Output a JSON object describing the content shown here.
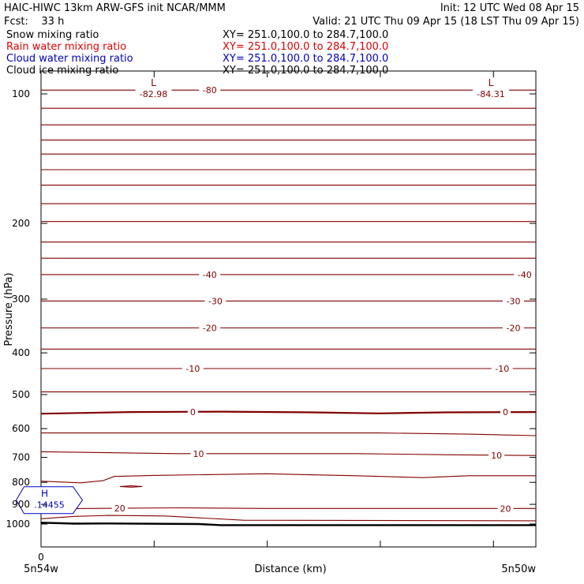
{
  "header": {
    "line1_left": "HAIC-HIWC 13km ARW-GFS init   NCAR/MMM",
    "line1_right": "Init: 12 UTC Wed 08 Apr 15",
    "line2_left": "Fcst:    33 h",
    "line2_right": "Valid: 21 UTC Thu 09 Apr 15 (18 LST Thu 09 Apr 15)"
  },
  "fields": [
    {
      "name": "Snow mixing ratio",
      "xy": "XY= 251.0,100.0 to 284.7,100.0",
      "color": "#000000"
    },
    {
      "name": "Rain water mixing ratio",
      "xy": "XY= 251.0,100.0 to 284.7,100.0",
      "color": "#e00000"
    },
    {
      "name": "Cloud water mixing ratio",
      "xy": "XY= 251.0,100.0 to 284.7,100.0",
      "color": "#0000c0"
    },
    {
      "name": "Cloud ice mixing ratio",
      "xy": "XY= 251.0,100.0 to 284.7,100.0",
      "color": "#000000"
    }
  ],
  "chart_data": {
    "type": "line",
    "ylabel": "Pressure (hPa)",
    "xlabel": "Distance (km)",
    "y_scale": "log",
    "ylim": [
      1050,
      85
    ],
    "xlim": [
      0,
      440
    ],
    "y_ticks": [
      "100",
      "200",
      "300",
      "400",
      "500",
      "600",
      "700",
      "800",
      "900",
      "1000"
    ],
    "x_tick_label": "0",
    "x_left_label": "5n54w",
    "x_right_label": "5n50w",
    "isotherm_color": "#800000",
    "ground_color": "#000000",
    "min_labels": [
      {
        "symbol": "L",
        "value": "-82.98",
        "x_km": 100
      },
      {
        "symbol": "L",
        "value": "-84.31",
        "x_km": 400
      }
    ],
    "max_label": {
      "symbol": "H",
      "value": ".14455",
      "x_km": 20,
      "p": 880,
      "color": "#0000c0"
    },
    "contours": [
      {
        "label": "-80",
        "label_x": [
          150
        ],
        "points": [
          [
            0,
            98
          ],
          [
            440,
            98
          ]
        ]
      },
      {
        "label": "",
        "points": [
          [
            0,
            108
          ],
          [
            440,
            108
          ]
        ]
      },
      {
        "label": "",
        "points": [
          [
            0,
            118
          ],
          [
            440,
            118
          ]
        ]
      },
      {
        "label": "",
        "points": [
          [
            0,
            128
          ],
          [
            440,
            128
          ]
        ]
      },
      {
        "label": "",
        "points": [
          [
            0,
            138
          ],
          [
            440,
            138
          ]
        ]
      },
      {
        "label": "",
        "points": [
          [
            0,
            150
          ],
          [
            440,
            150
          ]
        ]
      },
      {
        "label": "",
        "points": [
          [
            0,
            163
          ],
          [
            440,
            163
          ]
        ]
      },
      {
        "label": "",
        "points": [
          [
            0,
            180
          ],
          [
            440,
            180
          ]
        ]
      },
      {
        "label": "",
        "points": [
          [
            0,
            198
          ],
          [
            440,
            198
          ]
        ]
      },
      {
        "label": "",
        "points": [
          [
            0,
            221
          ],
          [
            440,
            221
          ]
        ]
      },
      {
        "label": "",
        "points": [
          [
            0,
            241
          ],
          [
            440,
            241
          ]
        ]
      },
      {
        "label": "-40",
        "label_x": [
          150,
          430
        ],
        "points": [
          [
            0,
            263
          ],
          [
            440,
            263
          ]
        ]
      },
      {
        "label": "-30",
        "label_x": [
          155,
          420
        ],
        "points": [
          [
            0,
            303
          ],
          [
            440,
            303
          ]
        ]
      },
      {
        "label": "-20",
        "label_x": [
          150,
          420
        ],
        "points": [
          [
            0,
            350
          ],
          [
            440,
            350
          ]
        ]
      },
      {
        "label": "",
        "points": [
          [
            0,
            392
          ],
          [
            440,
            392
          ]
        ]
      },
      {
        "label": "-10",
        "label_x": [
          135,
          410
        ],
        "points": [
          [
            0,
            435
          ],
          [
            440,
            435
          ]
        ]
      },
      {
        "label": "",
        "points": [
          [
            0,
            493
          ],
          [
            440,
            493
          ]
        ]
      },
      {
        "label": "0",
        "label_x": [
          135,
          413
        ],
        "bold": true,
        "points": [
          [
            0,
            554
          ],
          [
            80,
            549
          ],
          [
            160,
            548
          ],
          [
            240,
            550
          ],
          [
            300,
            553
          ],
          [
            360,
            550
          ],
          [
            440,
            549
          ]
        ]
      },
      {
        "label": "",
        "points": [
          [
            0,
            614
          ],
          [
            300,
            614
          ],
          [
            380,
            618
          ],
          [
            440,
            623
          ]
        ]
      },
      {
        "label": "10",
        "label_x": [
          140,
          405
        ],
        "points": [
          [
            0,
            679
          ],
          [
            120,
            686
          ],
          [
            280,
            686
          ],
          [
            360,
            690
          ],
          [
            440,
            693
          ]
        ]
      },
      {
        "label": "",
        "points": [
          [
            0,
            795
          ],
          [
            35,
            802
          ],
          [
            55,
            793
          ],
          [
            65,
            775
          ],
          [
            100,
            771
          ],
          [
            200,
            764
          ],
          [
            280,
            772
          ],
          [
            340,
            780
          ],
          [
            380,
            772
          ],
          [
            440,
            772
          ]
        ]
      },
      {
        "label": "20",
        "label_x": [
          70,
          413
        ],
        "points": [
          [
            0,
            922
          ],
          [
            120,
            917
          ],
          [
            200,
            920
          ],
          [
            360,
            920
          ],
          [
            440,
            920
          ]
        ]
      },
      {
        "label": "",
        "points": [
          [
            0,
            972
          ],
          [
            30,
            960
          ],
          [
            60,
            955
          ],
          [
            110,
            958
          ],
          [
            180,
            980
          ],
          [
            440,
            983
          ]
        ]
      },
      {
        "label": "",
        "closed": true,
        "points": [
          [
            70,
            818
          ],
          [
            80,
            815
          ],
          [
            90,
            818
          ],
          [
            80,
            821
          ]
        ]
      }
    ],
    "ground": [
      [
        0,
        993
      ],
      [
        30,
        998
      ],
      [
        60,
        997
      ],
      [
        140,
        1000
      ],
      [
        160,
        1006
      ],
      [
        440,
        1006
      ]
    ]
  }
}
